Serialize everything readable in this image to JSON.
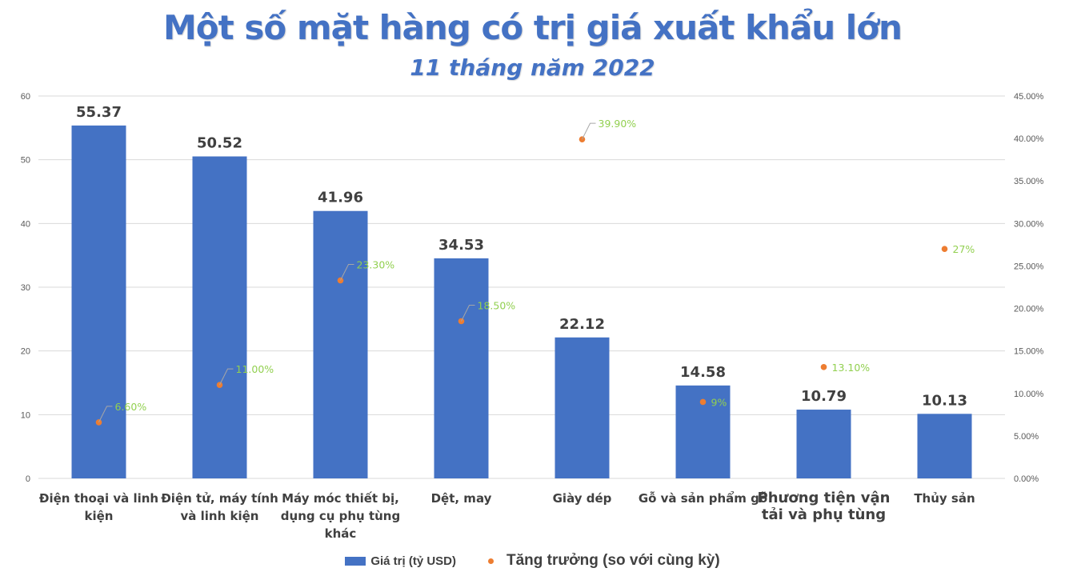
{
  "header": {
    "title": "Một số mặt hàng có trị giá xuất khẩu lớn",
    "subtitle": "11 tháng năm 2022"
  },
  "colors": {
    "title": "#4472C4",
    "bar": "#4472C4",
    "dot": "#ED7D31",
    "pct_label": "#92D050",
    "bar_label": "#404040",
    "grid": "#D9D9D9",
    "axis_text": "#595959"
  },
  "legend": {
    "bar_series": "Giá trị (tỷ USD)",
    "dot_series": "Tăng trưởng (so với cùng kỳ)"
  },
  "chart_data": {
    "type": "bar",
    "title": "Một số mặt hàng có trị giá xuất khẩu lớn",
    "subtitle": "11 tháng năm 2022",
    "categories": [
      [
        "Điện thoại và linh",
        "kiện"
      ],
      [
        "Điện tử, máy tính",
        "và linh kiện"
      ],
      [
        "Máy móc thiết bị,",
        "dụng cụ phụ tùng",
        "khác"
      ],
      [
        "Dệt, may"
      ],
      [
        "Giày dép"
      ],
      [
        "Gỗ và sản phẩm gỗ"
      ],
      [
        "Phương tiện vận",
        "tải và phụ tùng"
      ],
      [
        "Thủy sản"
      ]
    ],
    "series": [
      {
        "name": "Giá trị (tỷ USD)",
        "type": "bar",
        "axis": "left",
        "values": [
          55.37,
          50.52,
          41.96,
          34.53,
          22.12,
          14.58,
          10.79,
          10.13
        ],
        "labels": [
          "55.37",
          "50.52",
          "41.96",
          "34.53",
          "22.12",
          "14.58",
          "10.79",
          "10.13"
        ]
      },
      {
        "name": "Tăng trưởng (so với cùng kỳ)",
        "type": "scatter",
        "axis": "right",
        "values": [
          6.6,
          11.0,
          23.3,
          18.5,
          39.9,
          9.0,
          13.1,
          27.0
        ],
        "labels": [
          "6.60%",
          "11.00%",
          "23.30%",
          "18.50%",
          "39.90%",
          "9%",
          "13.10%",
          "27%"
        ]
      }
    ],
    "y_left": {
      "min": 0,
      "max": 60,
      "step": 10,
      "ticks": [
        "0",
        "10",
        "20",
        "30",
        "40",
        "50",
        "60"
      ]
    },
    "y_right": {
      "min": 0,
      "max": 45,
      "step": 5,
      "ticks": [
        "0.00%",
        "5.00%",
        "10.00%",
        "15.00%",
        "20.00%",
        "25.00%",
        "30.00%",
        "35.00%",
        "40.00%",
        "45.00%"
      ]
    },
    "xlabel": "",
    "ylabel": "",
    "grid": true,
    "legend_position": "bottom"
  }
}
